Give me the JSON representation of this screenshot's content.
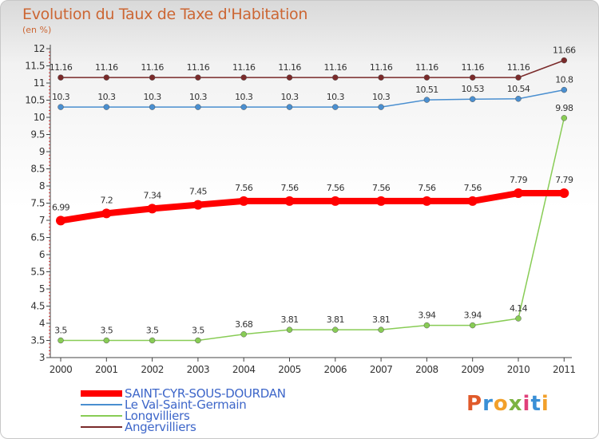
{
  "header": {
    "title": "Evolution du Taux de Taxe d'Habitation",
    "subtitle": "(en %)"
  },
  "chart_data": {
    "type": "line",
    "title": "Evolution du Taux de Taxe d'Habitation",
    "subtitle": "(en %)",
    "xlabel": "",
    "ylabel": "(en %)",
    "x": [
      "2000",
      "2001",
      "2002",
      "2003",
      "2004",
      "2005",
      "2006",
      "2007",
      "2008",
      "2009",
      "2010",
      "2011"
    ],
    "ylim": [
      3,
      12
    ],
    "yticks": [
      "3",
      "3.5",
      "4",
      "4.5",
      "5",
      "5.5",
      "6",
      "6.5",
      "7",
      "7.5",
      "8",
      "8.5",
      "9",
      "9.5",
      "10",
      "10.5",
      "11",
      "11.5",
      "12"
    ],
    "grid": false,
    "legend": "bottom-left",
    "series": [
      {
        "name": "SAINT-CYR-SOUS-DOURDAN",
        "color": "#ff0000",
        "values": [
          6.99,
          7.2,
          7.34,
          7.45,
          7.56,
          7.56,
          7.56,
          7.56,
          7.56,
          7.56,
          7.79,
          7.79
        ],
        "labels": [
          "6.99",
          "7.2",
          "7.34",
          "7.45",
          "7.56",
          "7.56",
          "7.56",
          "7.56",
          "7.56",
          "7.56",
          "7.79",
          "7.79"
        ]
      },
      {
        "name": "Le Val-Saint-Germain",
        "color": "#4a8fd0",
        "values": [
          10.3,
          10.3,
          10.3,
          10.3,
          10.3,
          10.3,
          10.3,
          10.3,
          10.51,
          10.53,
          10.54,
          10.8
        ],
        "labels": [
          "10.3",
          "10.3",
          "10.3",
          "10.3",
          "10.3",
          "10.3",
          "10.3",
          "10.3",
          "10.51",
          "10.53",
          "10.54",
          "10.8"
        ]
      },
      {
        "name": "Longvilliers",
        "color": "#88cc55",
        "values": [
          3.5,
          3.5,
          3.5,
          3.5,
          3.68,
          3.81,
          3.81,
          3.81,
          3.94,
          3.94,
          4.14,
          9.98
        ],
        "labels": [
          "3.5",
          "3.5",
          "3.5",
          "3.5",
          "3.68",
          "3.81",
          "3.81",
          "3.81",
          "3.94",
          "3.94",
          "4.14",
          "9.98"
        ]
      },
      {
        "name": "Angervilliers",
        "color": "#7a2a2a",
        "values": [
          11.16,
          11.16,
          11.16,
          11.16,
          11.16,
          11.16,
          11.16,
          11.16,
          11.16,
          11.16,
          11.16,
          11.66
        ],
        "labels": [
          "11.16",
          "11.16",
          "11.16",
          "11.16",
          "11.16",
          "11.16",
          "11.16",
          "11.16",
          "11.16",
          "11.16",
          "11.16",
          "11.66"
        ]
      }
    ]
  },
  "logo": {
    "letters": [
      "P",
      "r",
      "o",
      "x",
      "i",
      "t",
      "i"
    ],
    "colors": [
      "#e05a2a",
      "#3a8fd6",
      "#f2a02a",
      "#7cb342",
      "#e0407a",
      "#3a8fd6",
      "#f2a02a"
    ]
  }
}
